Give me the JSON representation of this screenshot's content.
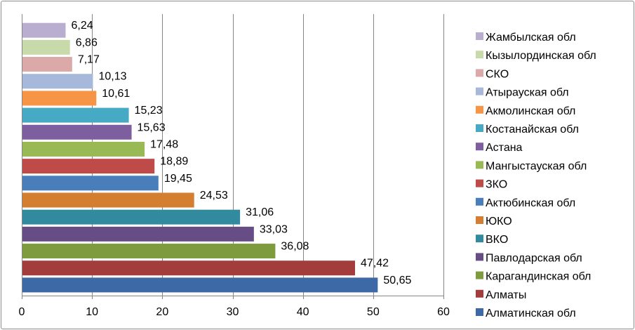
{
  "chart_data": {
    "type": "bar",
    "orientation": "horizontal",
    "title": "",
    "xlabel": "",
    "ylabel": "",
    "xlim": [
      0,
      60
    ],
    "x_ticks": [
      0,
      10,
      20,
      30,
      40,
      50,
      60
    ],
    "grid": "vertical",
    "legend_position": "right",
    "categories": [
      "Алматинская обл",
      "Алматы",
      "Карагандинская обл",
      "Павлодарская обл",
      "ВКО",
      "ЮКО",
      "Актюбинская обл",
      "ЗКО",
      "Мангыстауская обл",
      "Астана",
      "Костанайская обл",
      "Акмолинская обл",
      "Атырауская обл",
      "СКО",
      "Кызылординская обл",
      "Жамбылская обл"
    ],
    "values": [
      50.65,
      47.42,
      36.08,
      33.03,
      31.06,
      24.53,
      19.45,
      18.89,
      17.48,
      15.63,
      15.23,
      10.61,
      10.13,
      7.17,
      6.86,
      6.24
    ],
    "value_labels": [
      "50,65",
      "47,42",
      "36,08",
      "33,03",
      "31,06",
      "24,53",
      "19,45",
      "18,89",
      "17,48",
      "15,63",
      "15,23",
      "10,61",
      "10,13",
      "7,17",
      "6,86",
      "6,24"
    ],
    "colors": [
      "#3D6AA6",
      "#A33D3B",
      "#7E9C3E",
      "#674D86",
      "#328A9E",
      "#D47E31",
      "#4A7EBB",
      "#BE4B48",
      "#98B954",
      "#7D5FA0",
      "#46AAC5",
      "#F69546",
      "#A6B9DB",
      "#DBA9A8",
      "#C9DAAA",
      "#BAAED0"
    ]
  }
}
